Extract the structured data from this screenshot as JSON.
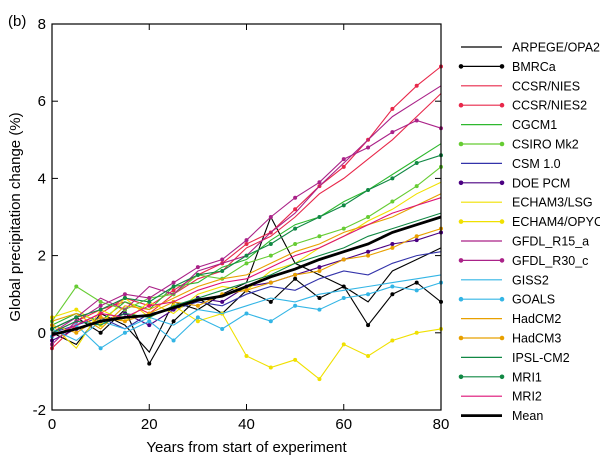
{
  "chart_data": {
    "type": "line",
    "panel_label": "(b)",
    "xlabel": "Years from start of experiment",
    "ylabel": "Global precipitation change (%)",
    "xlim": [
      0,
      80
    ],
    "ylim": [
      -2,
      8
    ],
    "x_ticks": [
      0,
      20,
      40,
      60,
      80
    ],
    "y_ticks": [
      -2,
      0,
      2,
      4,
      6,
      8
    ],
    "grid": false,
    "legend_position": "right",
    "x": [
      0,
      5,
      10,
      15,
      20,
      25,
      30,
      35,
      40,
      45,
      50,
      55,
      60,
      65,
      70,
      75,
      80
    ],
    "series": [
      {
        "name": "ARPEGE/OPA2",
        "color": "#000000",
        "marker": "none",
        "values": [
          0.0,
          -0.3,
          0.5,
          0.2,
          -0.5,
          0.8,
          0.6,
          1.0,
          1.3,
          3.0,
          1.8,
          1.5,
          1.2,
          0.8,
          1.6,
          1.9,
          2.2
        ]
      },
      {
        "name": "BMRCa",
        "color": "#000000",
        "marker": "dot",
        "values": [
          0.1,
          0.4,
          0.0,
          0.6,
          -0.8,
          0.3,
          0.9,
          0.5,
          1.1,
          0.8,
          1.4,
          0.9,
          1.2,
          0.2,
          1.0,
          1.3,
          0.8
        ]
      },
      {
        "name": "CCSR/NIES",
        "color": "#e8284a",
        "marker": "none",
        "values": [
          0.0,
          0.3,
          0.6,
          0.8,
          0.5,
          1.0,
          1.4,
          1.6,
          2.2,
          2.5,
          3.0,
          3.6,
          4.0,
          4.5,
          5.0,
          5.6,
          6.2
        ]
      },
      {
        "name": "CCSR/NIES2",
        "color": "#e8284a",
        "marker": "dot",
        "values": [
          -0.4,
          0.2,
          0.5,
          0.9,
          0.7,
          1.1,
          1.5,
          1.8,
          2.3,
          2.6,
          3.2,
          3.8,
          4.3,
          5.0,
          5.8,
          6.4,
          6.9
        ]
      },
      {
        "name": "CGCM1",
        "color": "#2eb82e",
        "marker": "none",
        "values": [
          0.2,
          0.5,
          0.3,
          0.8,
          0.6,
          1.2,
          1.3,
          1.7,
          1.9,
          2.4,
          2.8,
          3.0,
          3.4,
          3.7,
          4.1,
          4.5,
          4.9
        ]
      },
      {
        "name": "CSIRO Mk2",
        "color": "#66cc33",
        "marker": "dot",
        "values": [
          0.3,
          1.2,
          0.8,
          0.6,
          0.9,
          1.0,
          1.5,
          1.4,
          1.8,
          2.0,
          2.3,
          2.5,
          2.7,
          3.0,
          3.4,
          3.8,
          4.3
        ]
      },
      {
        "name": "CSM 1.0",
        "color": "#3333aa",
        "marker": "none",
        "values": [
          0.0,
          0.2,
          0.4,
          0.1,
          0.5,
          0.6,
          0.8,
          0.7,
          1.0,
          1.2,
          1.1,
          1.4,
          1.6,
          1.5,
          1.8,
          2.0,
          2.1
        ]
      },
      {
        "name": "DOE PCM",
        "color": "#4b0082",
        "marker": "dot",
        "values": [
          -0.2,
          0.1,
          0.3,
          0.5,
          0.2,
          0.6,
          0.9,
          0.8,
          1.2,
          1.3,
          1.5,
          1.7,
          1.9,
          2.1,
          2.3,
          2.4,
          2.6
        ]
      },
      {
        "name": "ECHAM3/LSG",
        "color": "#f0e000",
        "marker": "none",
        "values": [
          0.2,
          -0.4,
          0.6,
          0.3,
          0.8,
          0.5,
          1.0,
          1.2,
          1.1,
          1.6,
          1.8,
          2.2,
          2.5,
          2.9,
          3.2,
          3.6,
          3.9
        ]
      },
      {
        "name": "ECHAM4/OPYC",
        "color": "#f0e000",
        "marker": "dot",
        "values": [
          0.4,
          0.6,
          0.2,
          0.9,
          0.4,
          0.7,
          0.3,
          0.5,
          -0.6,
          -0.9,
          -0.7,
          -1.2,
          -0.3,
          -0.6,
          -0.2,
          0.0,
          0.1
        ]
      },
      {
        "name": "GFDL_R15_a",
        "color": "#aa2288",
        "marker": "none",
        "values": [
          0.0,
          0.4,
          0.9,
          0.6,
          1.2,
          1.0,
          1.6,
          1.8,
          2.0,
          2.6,
          3.1,
          3.8,
          4.4,
          5.0,
          5.6,
          6.0,
          6.4
        ]
      },
      {
        "name": "GFDL_R30_c",
        "color": "#aa2288",
        "marker": "dot",
        "values": [
          -0.3,
          0.3,
          0.7,
          1.0,
          0.9,
          1.3,
          1.7,
          1.9,
          2.4,
          3.0,
          3.5,
          3.9,
          4.5,
          4.8,
          5.2,
          5.5,
          5.3
        ]
      },
      {
        "name": "GISS2",
        "color": "#33b5e5",
        "marker": "none",
        "values": [
          0.1,
          -0.2,
          0.3,
          0.1,
          0.4,
          0.2,
          0.6,
          0.5,
          0.7,
          0.9,
          0.8,
          1.0,
          1.1,
          1.2,
          1.3,
          1.4,
          1.5
        ]
      },
      {
        "name": "GOALS",
        "color": "#33b5e5",
        "marker": "dot",
        "values": [
          -0.1,
          0.2,
          -0.4,
          0.0,
          0.3,
          -0.2,
          0.4,
          0.1,
          0.5,
          0.3,
          0.7,
          0.6,
          0.9,
          1.0,
          1.2,
          1.1,
          1.3
        ]
      },
      {
        "name": "HadCM2",
        "color": "#e8a000",
        "marker": "none",
        "values": [
          0.3,
          0.5,
          0.1,
          0.7,
          0.6,
          0.9,
          1.2,
          1.4,
          1.5,
          1.8,
          2.1,
          2.3,
          2.6,
          2.8,
          3.0,
          3.3,
          3.6
        ]
      },
      {
        "name": "HadCM3",
        "color": "#e8a000",
        "marker": "dot",
        "values": [
          0.2,
          0.0,
          0.4,
          0.3,
          0.5,
          0.8,
          0.7,
          1.0,
          1.1,
          1.3,
          1.5,
          1.6,
          1.9,
          2.0,
          2.2,
          2.5,
          2.7
        ]
      },
      {
        "name": "IPSL-CM2",
        "color": "#118844",
        "marker": "none",
        "values": [
          0.0,
          0.3,
          0.2,
          0.5,
          0.4,
          0.7,
          0.9,
          1.1,
          1.3,
          1.5,
          1.8,
          2.0,
          2.2,
          2.5,
          2.7,
          2.9,
          3.1
        ]
      },
      {
        "name": "MRI1",
        "color": "#118844",
        "marker": "dot",
        "values": [
          0.1,
          0.4,
          0.6,
          0.9,
          0.8,
          1.2,
          1.5,
          1.6,
          2.0,
          2.3,
          2.7,
          3.0,
          3.3,
          3.7,
          4.0,
          4.4,
          4.6
        ]
      },
      {
        "name": "MRI2",
        "color": "#dd1177",
        "marker": "none",
        "values": [
          -0.1,
          0.2,
          0.5,
          0.4,
          0.7,
          0.8,
          1.1,
          1.3,
          1.4,
          1.7,
          2.0,
          2.2,
          2.5,
          2.8,
          3.1,
          3.3,
          3.5
        ]
      },
      {
        "name": "Mean",
        "color": "#000000",
        "marker": "none",
        "bold": true,
        "values": [
          -0.05,
          0.1,
          0.3,
          0.4,
          0.45,
          0.65,
          0.85,
          0.95,
          1.2,
          1.45,
          1.65,
          1.9,
          2.1,
          2.3,
          2.6,
          2.8,
          3.0
        ]
      }
    ]
  }
}
